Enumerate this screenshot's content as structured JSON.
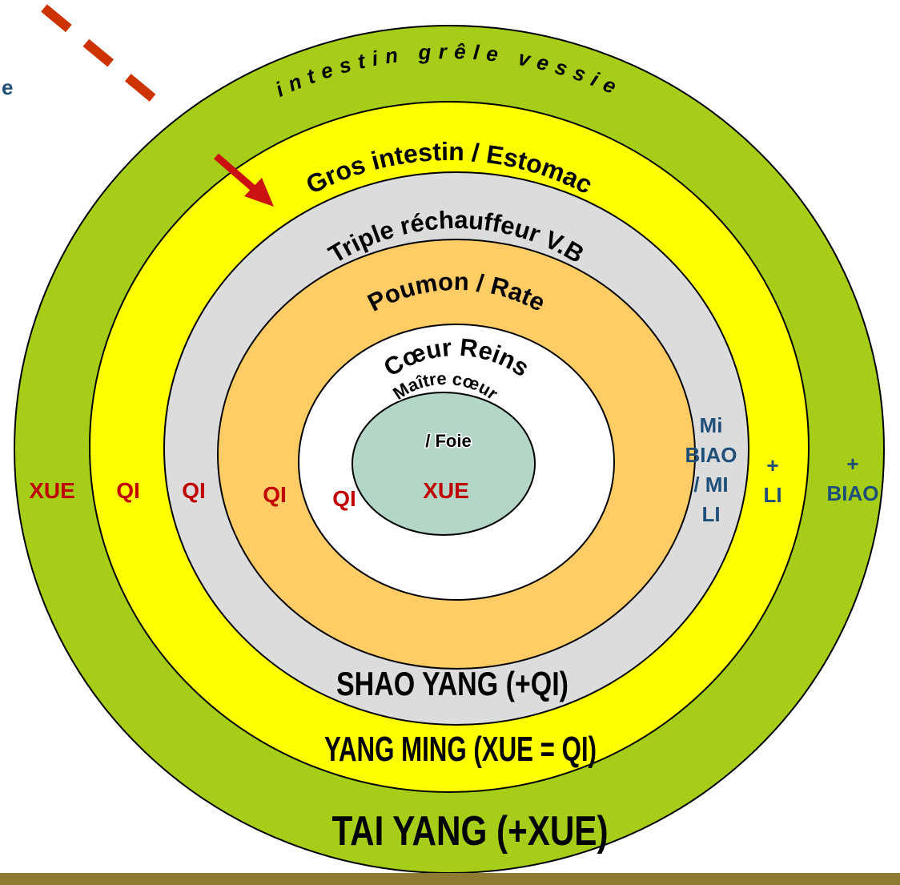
{
  "partial_text": "e",
  "rings": [
    {
      "label": "intestin grêle vessie"
    },
    {
      "label": "Gros intestin / Estomac"
    },
    {
      "label": "Triple réchauffeur V.B"
    },
    {
      "label": "Poumon / Rate"
    },
    {
      "label": "Cœur Reins"
    },
    {
      "label": "Maître cœur",
      "label2": "/ Foie"
    }
  ],
  "side_labels": [
    "XUE",
    "QI",
    "QI",
    "QI",
    "QI",
    "XUE"
  ],
  "right_labels": [
    [
      "Mi",
      "BIAO",
      "/ MI",
      "LI"
    ],
    [
      "+",
      "LI"
    ],
    [
      "+",
      "BIAO"
    ]
  ],
  "bottom_labels": [
    "SHAO YANG  (+QI)",
    "YANG MING  (XUE = QI)",
    "TAI YANG  (+XUE)"
  ]
}
